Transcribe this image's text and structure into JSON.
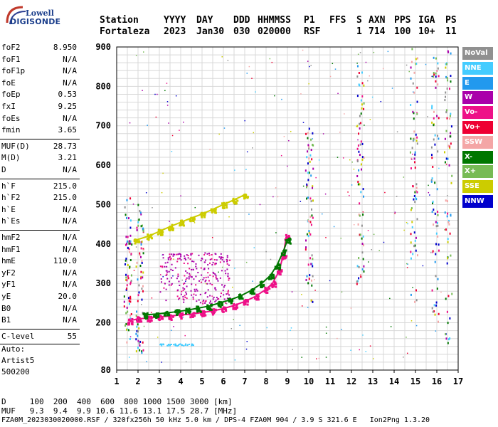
{
  "logo": {
    "top": "Lowell",
    "bottom": "DIGISONDE"
  },
  "header": {
    "labels": [
      "Station",
      "YYYY",
      "DAY",
      "DDD",
      "HHMMSS",
      "P1",
      "FFS",
      "S",
      "AXN",
      "PPS",
      "IGA",
      "PS"
    ],
    "values": [
      "Fortaleza",
      "2023",
      "Jan30",
      "030",
      "020000",
      "RSF",
      "1",
      "714",
      "100",
      "10+",
      "11"
    ]
  },
  "params_group1": [
    {
      "name": "foF2",
      "value": "8.950"
    },
    {
      "name": "foF1",
      "value": "N/A"
    },
    {
      "name": "foF1p",
      "value": "N/A"
    },
    {
      "name": "foE",
      "value": "N/A"
    },
    {
      "name": "foEp",
      "value": "0.53"
    },
    {
      "name": "fxI",
      "value": "9.25"
    },
    {
      "name": "foEs",
      "value": "N/A"
    },
    {
      "name": "fmin",
      "value": "3.65"
    }
  ],
  "params_group2": [
    {
      "name": "MUF(D)",
      "value": "28.73"
    },
    {
      "name": "M(D)",
      "value": "3.21"
    },
    {
      "name": "D",
      "value": "N/A"
    }
  ],
  "params_group3": [
    {
      "name": "h`F",
      "value": "215.0"
    },
    {
      "name": "h`F2",
      "value": "215.0"
    },
    {
      "name": "h`E",
      "value": "N/A"
    },
    {
      "name": "h`Es",
      "value": "N/A"
    }
  ],
  "params_group4": [
    {
      "name": "hmF2",
      "value": "N/A"
    },
    {
      "name": "hmF1",
      "value": "N/A"
    },
    {
      "name": "hmE",
      "value": "110.0"
    },
    {
      "name": "yF2",
      "value": "N/A"
    },
    {
      "name": "yF1",
      "value": "N/A"
    },
    {
      "name": "yE",
      "value": "20.0"
    },
    {
      "name": "B0",
      "value": "N/A"
    },
    {
      "name": "B1",
      "value": "N/A"
    }
  ],
  "params_group5": [
    {
      "name": "C-level",
      "value": "55"
    }
  ],
  "autoscale": {
    "line1": "Auto:",
    "line2": "Artist5",
    "line3": "500200"
  },
  "legend": [
    {
      "label": "NoVal",
      "color": "#909090"
    },
    {
      "label": "NNE",
      "color": "#44ccff"
    },
    {
      "label": "E",
      "color": "#2299ee"
    },
    {
      "label": "W",
      "color": "#aa00aa"
    },
    {
      "label": "Vo-",
      "color": "#ee1188"
    },
    {
      "label": "Vo+",
      "color": "#ee0033"
    },
    {
      "label": "SSW",
      "color": "#f4a6a6"
    },
    {
      "label": "X-",
      "color": "#007700"
    },
    {
      "label": "X+",
      "color": "#77bb55"
    },
    {
      "label": "SSE",
      "color": "#cccc00"
    },
    {
      "label": "NNW",
      "color": "#0000cc"
    }
  ],
  "footer": {
    "d_row": "D     100  200  400  600  800 1000 1500 3000 [km]",
    "muf_row": "MUF   9.3  9.4  9.9 10.6 11.6 13.1 17.5 28.7 [MHz]",
    "info_row": "FZA0M_2023030020000.RSF / 320fx256h 50 kHz 5.0 km / DPS-4 FZA0M 904 / 3.9 S 321.6 E   Ion2Png 1.3.20"
  },
  "chart_data": {
    "type": "scatter",
    "xlim": [
      1,
      17
    ],
    "ylim": [
      80,
      900
    ],
    "x_ticks": [
      1,
      2,
      3,
      4,
      5,
      6,
      7,
      8,
      9,
      10,
      11,
      12,
      13,
      14,
      15,
      16,
      17
    ],
    "y_ticks": [
      80,
      200,
      300,
      400,
      500,
      600,
      700,
      800,
      900
    ],
    "grid": true,
    "series": [
      {
        "name": "O-trace",
        "color": "#ee1188",
        "points": [
          [
            1.6,
            205
          ],
          [
            2.0,
            210
          ],
          [
            2.5,
            212
          ],
          [
            3.0,
            215
          ],
          [
            3.5,
            217
          ],
          [
            4.0,
            220
          ],
          [
            4.5,
            222
          ],
          [
            5.0,
            226
          ],
          [
            5.5,
            230
          ],
          [
            6.0,
            236
          ],
          [
            6.5,
            244
          ],
          [
            7.0,
            254
          ],
          [
            7.5,
            267
          ],
          [
            8.0,
            285
          ],
          [
            8.3,
            300
          ],
          [
            8.6,
            330
          ],
          [
            8.8,
            370
          ],
          [
            8.95,
            420
          ]
        ]
      },
      {
        "name": "X-trace",
        "color": "#007700",
        "points": [
          [
            2.3,
            220
          ],
          [
            2.8,
            222
          ],
          [
            3.3,
            225
          ],
          [
            3.8,
            228
          ],
          [
            4.3,
            232
          ],
          [
            4.8,
            237
          ],
          [
            5.3,
            242
          ],
          [
            5.8,
            250
          ],
          [
            6.3,
            258
          ],
          [
            6.8,
            268
          ],
          [
            7.3,
            282
          ],
          [
            7.8,
            300
          ],
          [
            8.2,
            320
          ],
          [
            8.5,
            345
          ],
          [
            8.8,
            380
          ],
          [
            9.0,
            410
          ]
        ]
      },
      {
        "name": "Second-hop",
        "color": "#cccc00",
        "points": [
          [
            1.9,
            410
          ],
          [
            2.5,
            420
          ],
          [
            3.0,
            432
          ],
          [
            3.5,
            444
          ],
          [
            4.0,
            455
          ],
          [
            4.5,
            466
          ],
          [
            5.0,
            476
          ],
          [
            5.5,
            488
          ],
          [
            6.0,
            500
          ],
          [
            6.5,
            512
          ],
          [
            7.0,
            525
          ]
        ]
      }
    ]
  }
}
